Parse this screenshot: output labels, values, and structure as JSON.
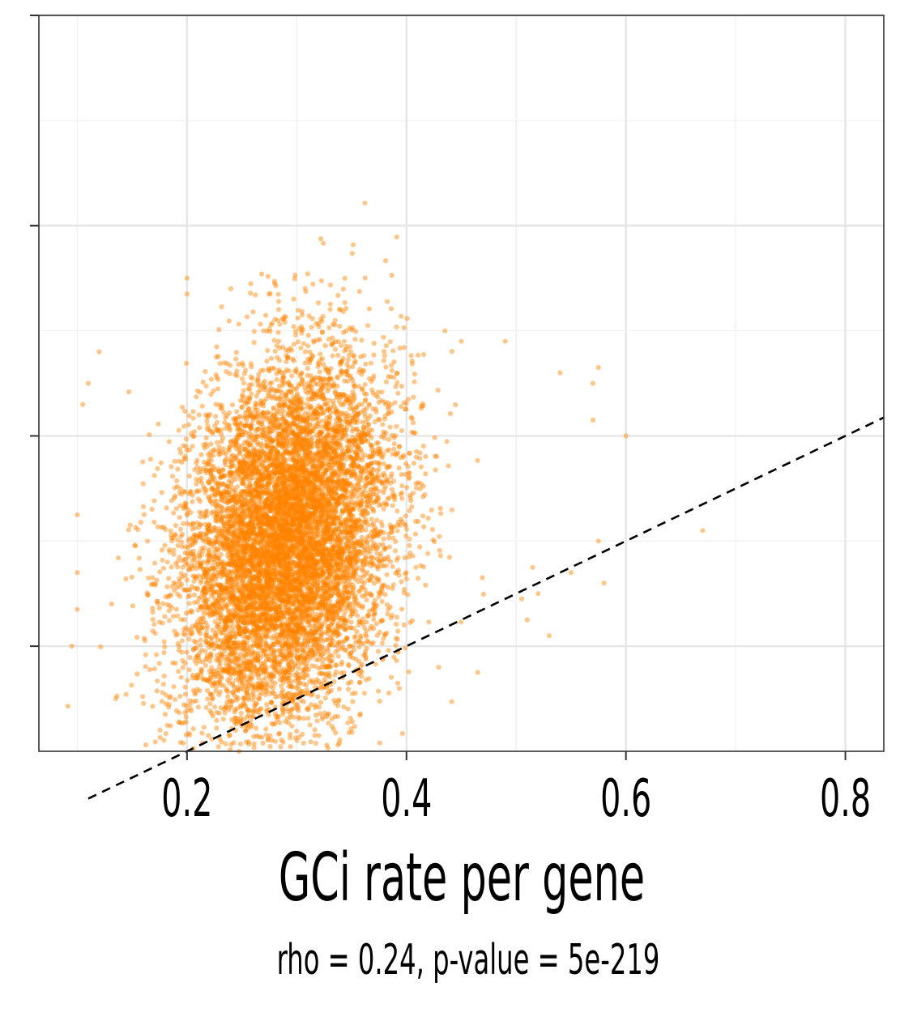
{
  "chart_data": {
    "type": "scatter",
    "title": "",
    "xlabel": "GCi rate per gene",
    "ylabel": "",
    "subtitle": "rho = 0.24, p-value = 5e-219",
    "xlim": [
      0.065,
      0.835
    ],
    "ylim": [
      0.2,
      1.6
    ],
    "x_ticks": [
      0.2,
      0.4,
      0.6,
      0.8
    ],
    "x_tick_labels": [
      "0.2",
      "0.4",
      "0.6",
      "0.8"
    ],
    "y_ticks": [
      0.4,
      0.8,
      1.2,
      1.6
    ],
    "grid": true,
    "legend": "none",
    "point_color": "#FF8200",
    "point_opacity": 0.45,
    "reference_line": {
      "type": "identity",
      "style": "dashed",
      "color": "#000000"
    },
    "series": [
      {
        "cloud": {
          "center": [
            0.29,
            0.6
          ],
          "sd": [
            0.048,
            0.17
          ],
          "rho": 0.24,
          "n": 9000
        },
        "outliers": [
          [
            0.2,
            1.1
          ],
          [
            0.24,
            1.08
          ],
          [
            0.28,
            1.09
          ],
          [
            0.305,
            1.03
          ],
          [
            0.34,
            1.04
          ],
          [
            0.345,
            1.0
          ],
          [
            0.435,
            1.0
          ],
          [
            0.45,
            0.98
          ],
          [
            0.49,
            0.98
          ],
          [
            0.2,
            1.07
          ],
          [
            0.54,
            0.92
          ],
          [
            0.57,
            0.9
          ],
          [
            0.575,
            0.93
          ],
          [
            0.57,
            0.83
          ],
          [
            0.6,
            0.8
          ],
          [
            0.67,
            0.62
          ],
          [
            0.575,
            0.6
          ],
          [
            0.58,
            0.52
          ],
          [
            0.55,
            0.54
          ],
          [
            0.515,
            0.55
          ],
          [
            0.52,
            0.5
          ],
          [
            0.505,
            0.49
          ],
          [
            0.53,
            0.42
          ],
          [
            0.51,
            0.45
          ],
          [
            0.465,
            0.35
          ],
          [
            0.1,
            0.65
          ],
          [
            0.1,
            0.54
          ],
          [
            0.11,
            0.9
          ],
          [
            0.105,
            0.86
          ],
          [
            0.12,
            0.96
          ],
          [
            0.135,
            0.3
          ],
          [
            0.2,
            0.15
          ],
          [
            0.2,
            0.17
          ],
          [
            0.22,
            0.16
          ],
          [
            0.26,
            0.16
          ],
          [
            0.31,
            0.14
          ],
          [
            0.315,
            0.13
          ],
          [
            0.325,
            0.14
          ],
          [
            0.095,
            0.4
          ],
          [
            0.1,
            0.47
          ]
        ]
      }
    ]
  }
}
